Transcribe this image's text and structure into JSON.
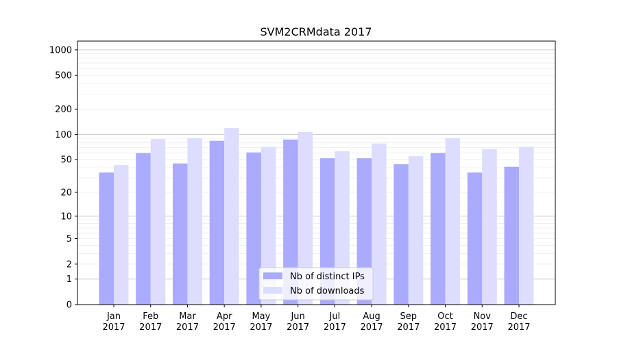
{
  "chart_data": {
    "type": "bar",
    "title": "SVM2CRMdata 2017",
    "xlabel": "",
    "ylabel": "",
    "yscale": "log(1+y)",
    "ylim": [
      0,
      1270
    ],
    "yticks": [
      0,
      1,
      2,
      5,
      10,
      20,
      50,
      100,
      200,
      500,
      1000
    ],
    "grid": true,
    "legend_position": "bottom-center",
    "categories": [
      "Jan\n2017",
      "Feb\n2017",
      "Mar\n2017",
      "Apr\n2017",
      "May\n2017",
      "Jun\n2017",
      "Jul\n2017",
      "Aug\n2017",
      "Sep\n2017",
      "Oct\n2017",
      "Nov\n2017",
      "Dec\n2017"
    ],
    "series": [
      {
        "name": "Nb of distinct IPs",
        "color": "#aaaaff",
        "values": [
          35,
          60,
          45,
          84,
          61,
          87,
          52,
          52,
          44,
          60,
          35,
          41
        ]
      },
      {
        "name": "Nb of downloads",
        "color": "#ddddff",
        "values": [
          43,
          88,
          90,
          119,
          71,
          107,
          63,
          78,
          55,
          90,
          67,
          71
        ]
      }
    ]
  }
}
